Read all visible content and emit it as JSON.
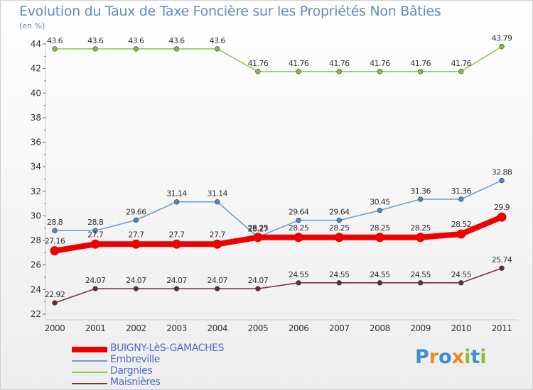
{
  "title": "Evolution du Taux de Taxe Foncière sur les Propriétés Non Bâties",
  "unit_label": "(en %)",
  "logo": {
    "letters": [
      "P",
      "r",
      "o",
      "x",
      "i",
      "t",
      "i"
    ],
    "colors": [
      "#3a8fd6",
      "#f08a1c",
      "#3a8fd6",
      "#f08a1c",
      "#8dbf3a",
      "#3a8fd6",
      "#8dbf3a"
    ]
  },
  "chart_data": {
    "type": "line",
    "title": "Evolution du Taux de Taxe Foncière sur les Propriétés Non Bâties",
    "ylabel": "(en %)",
    "xlabel": "",
    "ylim": [
      22,
      44
    ],
    "yticks": [
      "22",
      "24",
      "26",
      "28",
      "30",
      "32",
      "34",
      "36",
      "38",
      "40",
      "42",
      "44"
    ],
    "categories": [
      "2000",
      "2001",
      "2002",
      "2003",
      "2004",
      "2005",
      "2006",
      "2007",
      "2008",
      "2009",
      "2010",
      "2011"
    ],
    "grid": false,
    "legend_position": "bottom-left",
    "series": [
      {
        "name": "Dargnies",
        "color": "#8dcc52",
        "marker": "#7fc03e",
        "values": [
          43.6,
          43.6,
          43.6,
          43.6,
          43.6,
          41.76,
          41.76,
          41.76,
          41.76,
          41.76,
          41.76,
          43.79
        ],
        "labels": [
          "43.6",
          "43.6",
          "43.6",
          "43.6",
          "43.6",
          "41.76",
          "41.76",
          "41.76",
          "41.76",
          "41.76",
          "41.76",
          "43.79"
        ]
      },
      {
        "name": "Embreville",
        "color": "#6d9fd3",
        "marker": "#4d87c7",
        "values": [
          28.8,
          28.8,
          29.66,
          31.14,
          31.14,
          28.27,
          29.64,
          29.64,
          30.45,
          31.36,
          31.36,
          32.88
        ],
        "labels": [
          "28.8",
          "28.8",
          "29.66",
          "31.14",
          "31.14",
          "28.27",
          "29.64",
          "29.64",
          "30.45",
          "31.36",
          "31.36",
          "32.88"
        ]
      },
      {
        "name": "Maisnières",
        "color": "#7a3535",
        "marker": "#6a2a2a",
        "values": [
          22.92,
          24.07,
          24.07,
          24.07,
          24.07,
          24.07,
          24.55,
          24.55,
          24.55,
          24.55,
          24.55,
          25.74
        ],
        "labels": [
          "22.92",
          "24.07",
          "24.07",
          "24.07",
          "24.07",
          "24.07",
          "24.55",
          "24.55",
          "24.55",
          "24.55",
          "24.55",
          "25.74"
        ]
      },
      {
        "name": "BUIGNY-LèS-GAMACHES",
        "color": "#ee0000",
        "marker": "#ee0000",
        "thick": true,
        "values": [
          27.16,
          27.7,
          27.7,
          27.7,
          27.7,
          28.25,
          28.25,
          28.25,
          28.25,
          28.25,
          28.52,
          29.9
        ],
        "labels": [
          "27.16",
          "27.7",
          "27.7",
          "27.7",
          "27.7",
          "28.25",
          "28.25",
          "28.25",
          "28.25",
          "28.25",
          "28.52",
          "29.9"
        ]
      }
    ],
    "legend": [
      {
        "name": "BUIGNY-LèS-GAMACHES",
        "color": "#ee0000",
        "thick": true
      },
      {
        "name": "Embreville",
        "color": "#6d9fd3",
        "thick": false
      },
      {
        "name": "Dargnies",
        "color": "#8dcc52",
        "thick": false
      },
      {
        "name": "Maisnières",
        "color": "#7a3535",
        "thick": false
      }
    ]
  }
}
